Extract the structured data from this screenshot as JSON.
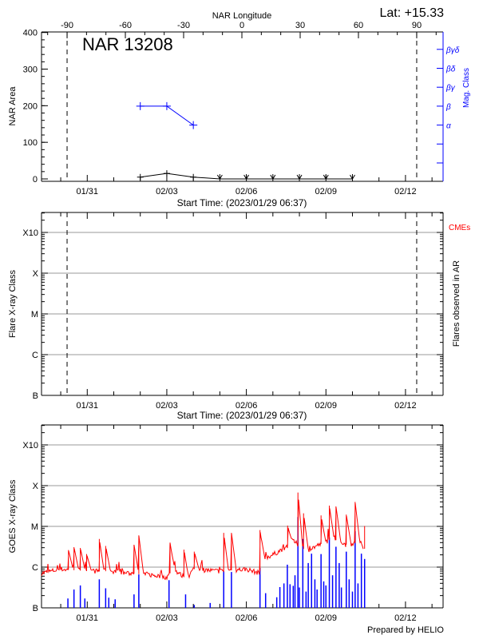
{
  "header": {
    "latitude": "Lat: +15.33",
    "footer": "Prepared by HELIO"
  },
  "chart_data": [
    {
      "type": "line",
      "title": "NAR 13208",
      "top_xlabel": "NAR Longitude",
      "xlabel": "Start Time: (2023/01/29 06:37)",
      "ylabel": "NAR Area",
      "y2label": "Mag. Class",
      "xlim": [
        "2023-01-29T06:37",
        "2023-02-13T09:55"
      ],
      "ylim": [
        0,
        400
      ],
      "x_ticks": [
        {
          "date": "2023-01-31T00:00",
          "label": "01/31"
        },
        {
          "date": "2023-02-03T00:00",
          "label": "02/03"
        },
        {
          "date": "2023-02-06T00:00",
          "label": "02/06"
        },
        {
          "date": "2023-02-09T00:00",
          "label": "02/09"
        },
        {
          "date": "2023-02-12T00:00",
          "label": "02/12"
        }
      ],
      "y_ticks": [
        "0",
        "100",
        "200",
        "300",
        "400"
      ],
      "top_ticks": [
        "-90",
        "-60",
        "-30",
        "0",
        "30",
        "60",
        "90"
      ],
      "limb_longitudes": [
        -90,
        90
      ],
      "mag_class_ticks": [
        "α",
        "β",
        "βγ",
        "βδ",
        "βγδ"
      ],
      "area_series": {
        "color": "#000000",
        "x": [
          "2023-02-02T00:00",
          "2023-02-03T00:00",
          "2023-02-04T00:00",
          "2023-02-05T00:00",
          "2023-02-06T00:00",
          "2023-02-07T00:00",
          "2023-02-08T00:00",
          "2023-02-09T00:00",
          "2023-02-10T00:00"
        ],
        "values": [
          5,
          15,
          5,
          0,
          0,
          0,
          0,
          0,
          0
        ]
      },
      "mag_series": {
        "color": "#0000ff",
        "x": [
          "2023-02-02T00:00",
          "2023-02-03T00:00",
          "2023-02-04T00:00"
        ],
        "values": [
          "β",
          "β",
          "α"
        ]
      }
    },
    {
      "type": "scatter",
      "xlabel": "Start Time: (2023/01/29 06:37)",
      "ylabel": "Flare X-ray Class",
      "y2label": "Flares observed in AR",
      "cme_label": "CMEs",
      "cme_color": "#ff0000",
      "y_ticks": [
        "B",
        "C",
        "M",
        "X",
        "X10"
      ],
      "grid": true,
      "limb_longitudes": [
        -90,
        90
      ],
      "flares": []
    },
    {
      "type": "line",
      "ylabel": "GOES X-ray Class",
      "y_ticks": [
        "B",
        "C",
        "M",
        "X",
        "X10"
      ],
      "grid": true,
      "y_scale": "log",
      "series": [
        {
          "color": "#ff0000",
          "baseline": [
            [
              "2023-01-29T06:37",
              -0.15
            ],
            [
              "2023-01-30T00:00",
              -0.05
            ],
            [
              "2023-01-31T00:00",
              -0.1
            ],
            [
              "2023-02-01T00:00",
              -0.1
            ],
            [
              "2023-02-01T12:00",
              -0.15
            ],
            [
              "2023-02-02T12:00",
              -0.2
            ],
            [
              "2023-02-03T00:00",
              -0.25
            ],
            [
              "2023-02-03T06:00",
              -0.05
            ],
            [
              "2023-02-03T18:00",
              -0.3
            ],
            [
              "2023-02-04T00:00",
              -0.05
            ],
            [
              "2023-02-05T00:00",
              -0.1
            ],
            [
              "2023-02-06T00:00",
              -0.05
            ],
            [
              "2023-02-06T12:00",
              -0.15
            ],
            [
              "2023-02-06T14:00",
              0.2
            ],
            [
              "2023-02-07T00:00",
              0.3
            ],
            [
              "2023-02-07T12:00",
              0.5
            ],
            [
              "2023-02-07T18:00",
              0.65
            ],
            [
              "2023-02-08T06:00",
              0.4
            ],
            [
              "2023-02-08T18:00",
              0.55
            ],
            [
              "2023-02-09T06:00",
              0.7
            ],
            [
              "2023-02-09T18:00",
              0.55
            ],
            [
              "2023-02-10T06:00",
              0.6
            ],
            [
              "2023-02-10T10:00",
              0.45
            ]
          ],
          "peaks": [
            [
              "2023-01-30T07:00",
              0.42
            ],
            [
              "2023-01-30T12:00",
              0.49
            ],
            [
              "2023-01-30T17:45",
              0.47
            ],
            [
              "2023-01-30T23:25",
              0.32
            ],
            [
              "2023-01-31T10:55",
              0.69
            ],
            [
              "2023-01-31T16:40",
              0.52
            ],
            [
              "2023-02-01T18:20",
              0.55
            ],
            [
              "2023-02-01T22:40",
              0.78
            ],
            [
              "2023-02-03T02:55",
              0.6
            ],
            [
              "2023-02-03T15:30",
              0.43
            ],
            [
              "2023-02-04T00:50",
              0.38
            ],
            [
              "2023-02-05T03:30",
              0.84
            ],
            [
              "2023-02-05T10:30",
              0.84
            ],
            [
              "2023-02-06T12:20",
              0.91
            ],
            [
              "2023-02-07T13:20",
              1.02
            ],
            [
              "2023-02-07T22:40",
              1.83
            ],
            [
              "2023-02-08T03:45",
              1.32
            ],
            [
              "2023-02-08T19:35",
              1.27
            ],
            [
              "2023-02-09T03:05",
              1.51
            ],
            [
              "2023-02-09T09:05",
              1.49
            ],
            [
              "2023-02-09T18:25",
              1.29
            ],
            [
              "2023-02-10T02:25",
              1.6
            ],
            [
              "2023-02-10T11:00",
              1.01
            ]
          ]
        },
        {
          "color": "#0000ff",
          "events": [
            [
              "2023-01-30T06:30",
              -0.77
            ],
            [
              "2023-01-30T12:00",
              -0.55
            ],
            [
              "2023-01-30T17:45",
              -0.45
            ],
            [
              "2023-01-30T21:50",
              -0.77
            ],
            [
              "2023-01-31T10:55",
              -0.3
            ],
            [
              "2023-01-31T16:40",
              -0.52
            ],
            [
              "2023-01-31T19:30",
              -0.75
            ],
            [
              "2023-02-01T01:15",
              -0.79
            ],
            [
              "2023-02-01T18:20",
              -0.67
            ],
            [
              "2023-02-01T22:40",
              -0.18
            ],
            [
              "2023-02-03T02:00",
              -0.32
            ],
            [
              "2023-02-03T17:00",
              -0.67
            ],
            [
              "2023-02-04T00:50",
              -0.93
            ],
            [
              "2023-02-04T15:15",
              -0.88
            ],
            [
              "2023-02-05T03:30",
              -0.1
            ],
            [
              "2023-02-05T10:30",
              -0.12
            ],
            [
              "2023-02-06T12:20",
              -0.02
            ],
            [
              "2023-02-06T17:25",
              -0.64
            ],
            [
              "2023-02-07T03:30",
              -0.74
            ],
            [
              "2023-02-07T06:20",
              -0.49
            ],
            [
              "2023-02-07T10:00",
              -0.4
            ],
            [
              "2023-02-07T13:05",
              0.06
            ],
            [
              "2023-02-07T15:30",
              -0.42
            ],
            [
              "2023-02-07T18:25",
              -0.46
            ],
            [
              "2023-02-07T20:00",
              -0.2
            ],
            [
              "2023-02-07T22:40",
              1.23
            ],
            [
              "2023-02-08T00:00",
              -0.5
            ],
            [
              "2023-02-08T03:05",
              0.69
            ],
            [
              "2023-02-08T06:00",
              -0.6
            ],
            [
              "2023-02-08T08:00",
              0.1
            ],
            [
              "2023-02-08T11:00",
              0.33
            ],
            [
              "2023-02-08T14:00",
              -0.3
            ],
            [
              "2023-02-08T16:00",
              -0.55
            ],
            [
              "2023-02-08T19:35",
              0.32
            ],
            [
              "2023-02-08T22:00",
              -0.35
            ],
            [
              "2023-02-09T00:00",
              -0.45
            ],
            [
              "2023-02-09T03:05",
              0.73
            ],
            [
              "2023-02-09T06:00",
              -0.2
            ],
            [
              "2023-02-09T09:05",
              0.5
            ],
            [
              "2023-02-09T12:00",
              0.1
            ],
            [
              "2023-02-09T14:00",
              -0.5
            ],
            [
              "2023-02-09T18:25",
              0.38
            ],
            [
              "2023-02-09T21:00",
              -0.3
            ],
            [
              "2023-02-10T00:00",
              -0.6
            ],
            [
              "2023-02-10T02:25",
              0.88
            ],
            [
              "2023-02-10T05:00",
              -0.4
            ],
            [
              "2023-02-10T08:05",
              0.33
            ],
            [
              "2023-02-10T11:00",
              0.2
            ]
          ]
        }
      ]
    }
  ]
}
